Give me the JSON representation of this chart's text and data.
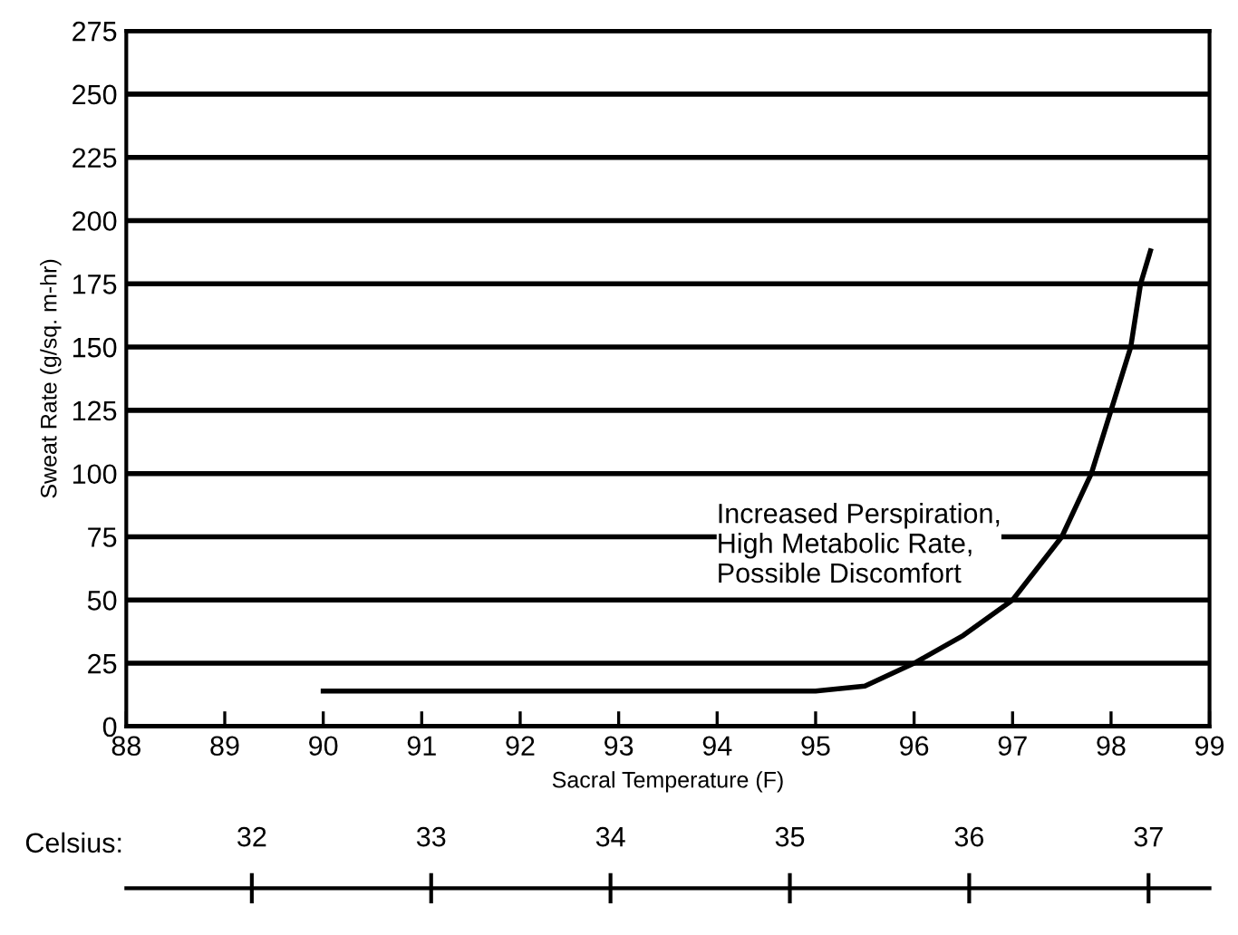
{
  "chart_data": {
    "type": "line",
    "xlabel": "Sacral Temperature (F)",
    "ylabel": "Sweat Rate (g/sq. m-hr)",
    "x2label": "Celsius:",
    "series": [
      {
        "color": "#000000",
        "x": [
          90,
          95,
          95.5,
          96.0,
          96.5,
          97.0,
          97.5,
          97.8,
          98.0,
          98.2,
          98.3,
          98.4
        ],
        "values": [
          14,
          14,
          16,
          25,
          36,
          50,
          75,
          100,
          125,
          150,
          175,
          188
        ]
      }
    ],
    "xlim": [
      88,
      99
    ],
    "xticks": [
      88,
      89,
      90,
      91,
      92,
      93,
      94,
      95,
      96,
      97,
      98,
      99
    ],
    "ylim": [
      0,
      275
    ],
    "yticks": [
      0,
      25,
      50,
      75,
      100,
      125,
      150,
      175,
      200,
      225,
      250,
      275
    ],
    "x2lim": [
      31.3,
      37.34
    ],
    "x2ticks": [
      32,
      33,
      34,
      35,
      36,
      37
    ],
    "grid": "y",
    "marker": "none",
    "line_style": "solid",
    "annotations": [
      "Increased Perspiration,\nHigh Metabolic Rate,\nPossible Discomfort"
    ]
  }
}
